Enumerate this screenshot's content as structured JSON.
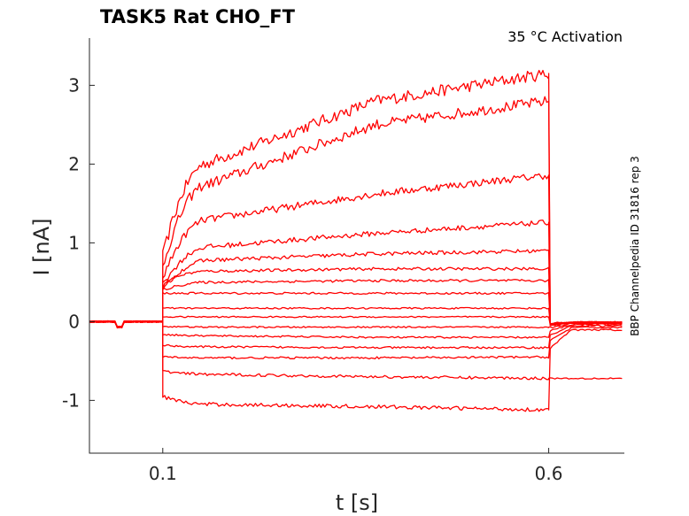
{
  "chart_data": {
    "type": "line",
    "title": "TASK5  Rat  CHO_FT",
    "annotation": "35 °C  Activation",
    "side_label": "BBP Channelpedia ID 31816 rep 3",
    "xlabel": "t [s]",
    "ylabel": "I [nA]",
    "xlim": [
      0.005,
      0.698
    ],
    "ylim": [
      -1.67,
      3.6
    ],
    "xticks": [
      0.1,
      0.6
    ],
    "xtick_labels": [
      "0.1",
      "0.6"
    ],
    "yticks": [
      -1,
      0,
      1,
      2,
      3
    ],
    "ytick_labels": [
      "-1",
      "0",
      "1",
      "2",
      "3"
    ],
    "grid": false,
    "line_color": "#ff0000",
    "pulse": {
      "start": 0.1,
      "end": 0.6
    },
    "series": [
      {
        "step": [
          0.83,
          2.02,
          2.8,
          3.15
        ],
        "tail": -0.05
      },
      {
        "step": [
          0.7,
          1.75,
          2.5,
          2.8
        ],
        "tail": -0.05
      },
      {
        "step": [
          0.55,
          1.3,
          1.62,
          1.86
        ],
        "tail": -0.04
      },
      {
        "step": [
          0.45,
          0.95,
          1.12,
          1.26
        ],
        "tail": -0.04
      },
      {
        "step": [
          0.4,
          0.78,
          0.86,
          0.9
        ],
        "tail": -0.03
      },
      {
        "step": [
          0.5,
          0.64,
          0.67,
          0.67
        ],
        "tail": -0.03
      },
      {
        "step": [
          0.4,
          0.5,
          0.52,
          0.52
        ],
        "tail": -0.03
      },
      {
        "step": [
          0.36,
          0.36,
          0.36,
          0.36
        ],
        "tail": -0.02
      },
      {
        "step": [
          0.17,
          0.17,
          0.17,
          0.17
        ],
        "tail": -0.03
      },
      {
        "step": [
          0.06,
          0.06,
          0.06,
          0.06
        ],
        "tail": -0.04
      },
      {
        "step": [
          -0.06,
          -0.07,
          -0.07,
          -0.07
        ],
        "tail": -0.08
      },
      {
        "step": [
          -0.16,
          -0.18,
          -0.2,
          -0.2
        ],
        "tail": -0.12
      },
      {
        "step": [
          -0.3,
          -0.32,
          -0.33,
          -0.33
        ],
        "tail": -0.18
      },
      {
        "step": [
          -0.45,
          -0.46,
          -0.46,
          -0.45
        ],
        "tail": -0.25
      },
      {
        "step": [
          -0.63,
          -0.67,
          -0.7,
          -0.72
        ],
        "tail": -0.72
      },
      {
        "step": [
          -0.95,
          -1.05,
          -1.08,
          -1.12
        ],
        "tail": -0.35
      }
    ]
  }
}
